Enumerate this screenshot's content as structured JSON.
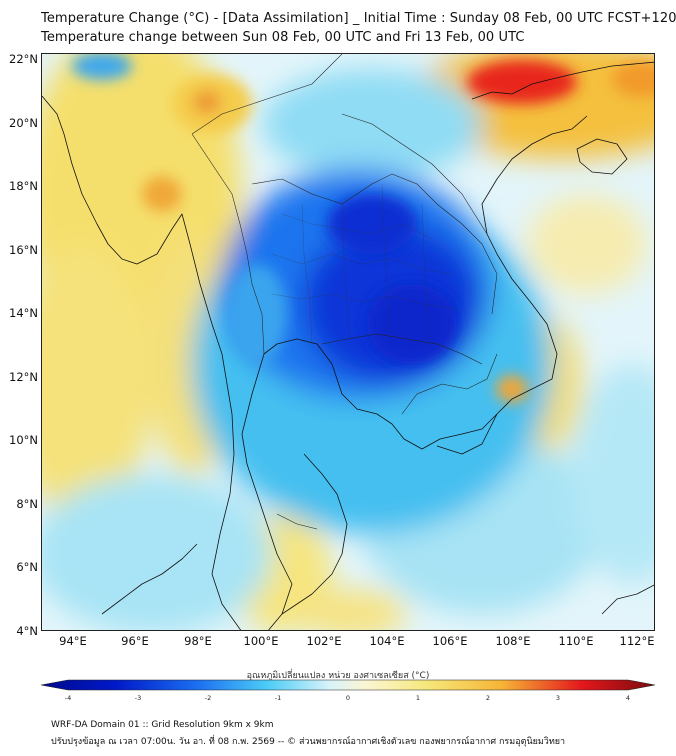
{
  "header": {
    "title_line1": "Temperature Change (°C) - [Data Assimilation] _ Initial Time : Sunday 08 Feb, 00 UTC FCST+120",
    "title_line2": "Temperature change between Sun 08 Feb, 00 UTC and Fri 13 Feb, 00 UTC"
  },
  "map": {
    "lat_labels": [
      "22°N",
      "20°N",
      "18°N",
      "16°N",
      "14°N",
      "12°N",
      "10°N",
      "8°N",
      "6°N",
      "4°N"
    ],
    "lon_labels": [
      "94°E",
      "96°E",
      "98°E",
      "100°E",
      "102°E",
      "104°E",
      "106°E",
      "108°E",
      "110°E",
      "112°E"
    ],
    "lat_range": [
      4,
      22.2
    ],
    "lon_range": [
      93,
      112.5
    ],
    "colors": {
      "very_cold": "#0018c8",
      "cold": "#1a6cf0",
      "cool": "#4ecdf6",
      "neutral": "#e6f6fa",
      "warm": "#f6e77a",
      "hot": "#f6b536",
      "very_hot": "#e4181c"
    }
  },
  "colorbar": {
    "title": "อุณหภูมิเปลี่ยนแปลง หน่วย องศาเซลเซียส (°C)",
    "ticks": [
      "-4",
      "-3",
      "-2",
      "-1",
      "0",
      "1",
      "2",
      "3",
      "4"
    ],
    "range": [
      -4,
      4
    ]
  },
  "footer": {
    "line1": "WRF-DA Domain 01 :: Grid Resolution 9km x 9km",
    "line2": "ปรับปรุงข้อมูล ณ เวลา 07:00น. วัน อา. ที่ 08 ก.พ. 2569 -- © ส่วนพยากรณ์อากาศเชิงตัวเลข กองพยากรณ์อากาศ กรมอุตุนิยมวิทยา"
  }
}
